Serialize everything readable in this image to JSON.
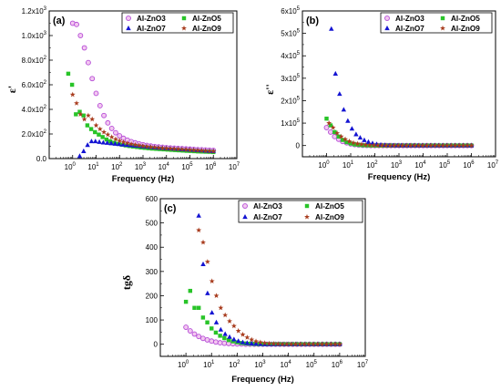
{
  "chart_data": [
    {
      "type": "scatter",
      "panel_label": "(a)",
      "xlabel": "Frequency (Hz)",
      "ylabel": "ε'",
      "xscale": "log",
      "xlim": [
        0.1,
        10000000
      ],
      "ylim": [
        0,
        1200
      ],
      "x_ticks": [
        {
          "label": "10⁰",
          "base": "10",
          "exp": "0",
          "value": 1
        },
        {
          "label": "10¹",
          "base": "10",
          "exp": "1",
          "value": 10
        },
        {
          "label": "10²",
          "base": "10",
          "exp": "2",
          "value": 100
        },
        {
          "label": "10³",
          "base": "10",
          "exp": "3",
          "value": 1000
        },
        {
          "label": "10⁴",
          "base": "10",
          "exp": "4",
          "value": 10000
        },
        {
          "label": "10⁵",
          "base": "10",
          "exp": "5",
          "value": 100000
        },
        {
          "label": "10⁶",
          "base": "10",
          "exp": "6",
          "value": 1000000
        },
        {
          "label": "10⁷",
          "base": "10",
          "exp": "7",
          "value": 10000000
        }
      ],
      "y_ticks": [
        {
          "label": "0.0",
          "mant": "0.0",
          "exp": "",
          "value": 0
        },
        {
          "label": "2.0x10²",
          "mant": "2.0x10",
          "exp": "2",
          "value": 200
        },
        {
          "label": "4.0x10²",
          "mant": "4.0x10",
          "exp": "2",
          "value": 400
        },
        {
          "label": "6.0x10²",
          "mant": "6.0x10",
          "exp": "2",
          "value": 600
        },
        {
          "label": "8.0x10²",
          "mant": "8.0x10",
          "exp": "2",
          "value": 800
        },
        {
          "label": "1.0x10³",
          "mant": "1.0x10",
          "exp": "3",
          "value": 1000
        },
        {
          "label": "1.2x10³",
          "mant": "1.2x10",
          "exp": "3",
          "value": 1200
        }
      ],
      "series": [
        {
          "name": "Al-ZnO3",
          "marker": "circle",
          "color": "#b44ad6",
          "fill": "#f3c8f0",
          "x_start": 1,
          "x_end": 1000000,
          "values": [
            1100,
            1090,
            1000,
            900,
            780,
            650,
            530,
            430,
            350,
            290,
            245,
            210,
            185,
            165,
            150,
            138,
            128,
            120,
            113,
            107,
            102,
            98,
            95,
            92,
            89,
            87,
            85,
            83,
            81,
            79,
            77,
            75,
            73,
            72,
            70,
            68,
            66
          ]
        },
        {
          "name": "Al-ZnO5",
          "marker": "square",
          "color": "#28c428",
          "fill": "#28c428",
          "x_start": 0.65,
          "x_end": 1000000,
          "values": [
            690,
            600,
            360,
            380,
            350,
            270,
            240,
            215,
            195,
            175,
            155,
            140,
            128,
            120,
            113,
            107,
            102,
            98,
            94,
            90,
            87,
            84,
            81,
            79,
            77,
            75,
            73,
            71,
            69,
            67,
            65,
            63,
            62,
            60,
            58,
            57,
            56,
            55,
            53
          ]
        },
        {
          "name": "Al-ZnO7",
          "marker": "triangle",
          "color": "#1414d2",
          "fill": "#1414d2",
          "x_start": 2,
          "x_end": 1000000,
          "values": [
            20,
            60,
            110,
            140,
            140,
            135,
            130,
            127,
            124,
            120,
            117,
            114,
            111,
            108,
            105,
            102,
            99,
            96,
            93,
            90,
            88,
            86,
            84,
            82,
            80,
            78,
            76,
            74,
            72,
            70,
            68,
            66,
            64,
            62,
            60
          ]
        },
        {
          "name": "Al-ZnO9",
          "marker": "star",
          "color": "#a83c1e",
          "fill": "#a83c1e",
          "x_start": 1,
          "x_end": 1000000,
          "values": [
            520,
            450,
            360,
            320,
            350,
            320,
            270,
            240,
            215,
            195,
            175,
            158,
            145,
            134,
            125,
            118,
            112,
            107,
            102,
            98,
            94,
            91,
            88,
            85,
            83,
            81,
            79,
            77,
            75,
            73,
            71,
            69,
            67,
            65,
            63,
            61,
            60
          ]
        }
      ]
    },
    {
      "type": "scatter",
      "panel_label": "(b)",
      "xlabel": "Frequency (Hz)",
      "ylabel": "ε''",
      "xscale": "log",
      "xlim": [
        0.1,
        10000000
      ],
      "ylim": [
        -50000,
        600000
      ],
      "x_ticks": [
        {
          "label": "10⁰",
          "base": "10",
          "exp": "0",
          "value": 1
        },
        {
          "label": "10¹",
          "base": "10",
          "exp": "1",
          "value": 10
        },
        {
          "label": "10²",
          "base": "10",
          "exp": "2",
          "value": 100
        },
        {
          "label": "10³",
          "base": "10",
          "exp": "3",
          "value": 1000
        },
        {
          "label": "10⁴",
          "base": "10",
          "exp": "4",
          "value": 10000
        },
        {
          "label": "10⁵",
          "base": "10",
          "exp": "5",
          "value": 100000
        },
        {
          "label": "10⁶",
          "base": "10",
          "exp": "6",
          "value": 1000000
        },
        {
          "label": "10⁷",
          "base": "10",
          "exp": "7",
          "value": 10000000
        }
      ],
      "y_ticks": [
        {
          "label": "0",
          "mant": "0",
          "exp": "",
          "value": 0
        },
        {
          "label": "1x10⁵",
          "mant": "1x10",
          "exp": "5",
          "value": 100000
        },
        {
          "label": "2x10⁵",
          "mant": "2x10",
          "exp": "5",
          "value": 200000
        },
        {
          "label": "3x10⁵",
          "mant": "3x10",
          "exp": "5",
          "value": 300000
        },
        {
          "label": "4x10⁵",
          "mant": "4x10",
          "exp": "5",
          "value": 400000
        },
        {
          "label": "5x10⁵",
          "mant": "5x10",
          "exp": "5",
          "value": 500000
        },
        {
          "label": "6x10⁵",
          "mant": "6x10",
          "exp": "5",
          "value": 600000
        }
      ],
      "series": [
        {
          "name": "Al-ZnO3",
          "marker": "circle",
          "color": "#b44ad6",
          "fill": "#f3c8f0",
          "x_start": 1,
          "x_end": 1000000,
          "values": [
            80000,
            60000,
            40000,
            28000,
            18000,
            12000,
            7000,
            4000,
            2000,
            1000,
            500,
            200,
            100,
            0,
            0,
            0,
            0,
            0,
            0,
            0,
            0,
            0,
            0,
            0,
            0,
            0,
            0,
            0,
            0,
            0,
            0,
            0,
            0,
            0,
            0,
            0,
            0
          ]
        },
        {
          "name": "Al-ZnO5",
          "marker": "square",
          "color": "#28c428",
          "fill": "#28c428",
          "x_start": 1,
          "x_end": 1000000,
          "values": [
            120000,
            90000,
            60000,
            40000,
            25000,
            15000,
            9000,
            5000,
            3000,
            1500,
            800,
            400,
            200,
            100,
            0,
            0,
            0,
            0,
            0,
            0,
            0,
            0,
            0,
            0,
            0,
            0,
            0,
            0,
            0,
            0,
            0,
            0,
            0,
            0,
            0,
            0,
            0
          ]
        },
        {
          "name": "Al-ZnO7",
          "marker": "triangle",
          "color": "#1414d2",
          "fill": "#1414d2",
          "x_start": 1.58,
          "x_end": 1000000,
          "values": [
            520000,
            320000,
            230000,
            160000,
            110000,
            75000,
            50000,
            35000,
            24000,
            16000,
            10000,
            6000,
            3500,
            2000,
            1000,
            500,
            200,
            100,
            0,
            0,
            0,
            0,
            0,
            0,
            0,
            0,
            0,
            0,
            0,
            0,
            0,
            0,
            0,
            0,
            0
          ]
        },
        {
          "name": "Al-ZnO9",
          "marker": "star",
          "color": "#a83c1e",
          "fill": "#a83c1e",
          "x_start": 1.26,
          "x_end": 1000000,
          "values": [
            100000,
            80000,
            55000,
            40000,
            28000,
            19000,
            12000,
            8000,
            5000,
            3000,
            1800,
            1000,
            500,
            250,
            100,
            0,
            0,
            0,
            0,
            0,
            0,
            0,
            0,
            0,
            0,
            0,
            0,
            0,
            0,
            0,
            0,
            0,
            0,
            0,
            0,
            0
          ]
        }
      ]
    },
    {
      "type": "scatter",
      "panel_label": "(c)",
      "xlabel": "Frequency (Hz)",
      "ylabel": "tgδ",
      "xscale": "log",
      "xlim": [
        0.1,
        10000000
      ],
      "ylim": [
        -50,
        600
      ],
      "x_ticks": [
        {
          "label": "10⁰",
          "base": "10",
          "exp": "0",
          "value": 1
        },
        {
          "label": "10¹",
          "base": "10",
          "exp": "1",
          "value": 10
        },
        {
          "label": "10²",
          "base": "10",
          "exp": "2",
          "value": 100
        },
        {
          "label": "10³",
          "base": "10",
          "exp": "3",
          "value": 1000
        },
        {
          "label": "10⁴",
          "base": "10",
          "exp": "4",
          "value": 10000
        },
        {
          "label": "10⁵",
          "base": "10",
          "exp": "5",
          "value": 100000
        },
        {
          "label": "10⁶",
          "base": "10",
          "exp": "6",
          "value": 1000000
        },
        {
          "label": "10⁷",
          "base": "10",
          "exp": "7",
          "value": 10000000
        }
      ],
      "y_ticks": [
        {
          "label": "0",
          "mant": "0",
          "exp": "",
          "value": 0
        },
        {
          "label": "100",
          "mant": "100",
          "exp": "",
          "value": 100
        },
        {
          "label": "200",
          "mant": "200",
          "exp": "",
          "value": 200
        },
        {
          "label": "300",
          "mant": "300",
          "exp": "",
          "value": 300
        },
        {
          "label": "400",
          "mant": "400",
          "exp": "",
          "value": 400
        },
        {
          "label": "500",
          "mant": "500",
          "exp": "",
          "value": 500
        },
        {
          "label": "600",
          "mant": "600",
          "exp": "",
          "value": 600
        }
      ],
      "series": [
        {
          "name": "Al-ZnO3",
          "marker": "circle",
          "color": "#b44ad6",
          "fill": "#f3c8f0",
          "x_start": 1,
          "x_end": 1000000,
          "values": [
            70,
            55,
            42,
            32,
            24,
            18,
            13,
            9,
            6,
            4,
            3,
            2,
            1,
            1,
            0,
            0,
            0,
            0,
            0,
            0,
            0,
            0,
            0,
            0,
            0,
            0,
            0,
            0,
            0,
            0,
            0,
            0,
            0,
            0,
            0,
            0,
            0
          ]
        },
        {
          "name": "Al-ZnO5",
          "marker": "square",
          "color": "#28c428",
          "fill": "#28c428",
          "x_start": 1,
          "x_end": 1000000,
          "values": [
            175,
            220,
            150,
            150,
            110,
            90,
            65,
            48,
            35,
            25,
            17,
            12,
            8,
            5,
            3,
            2,
            1,
            0,
            0,
            0,
            0,
            0,
            0,
            0,
            0,
            0,
            0,
            0,
            0,
            0,
            0,
            0,
            0,
            0,
            0,
            0,
            0
          ]
        },
        {
          "name": "Al-ZnO7",
          "marker": "triangle",
          "color": "#1414d2",
          "fill": "#1414d2",
          "x_start": 3.16,
          "x_end": 1000000,
          "values": [
            530,
            330,
            210,
            130,
            90,
            60,
            42,
            30,
            20,
            13,
            8,
            5,
            3,
            2,
            1,
            0,
            0,
            0,
            0,
            0,
            0,
            0,
            0,
            0,
            0,
            0,
            0,
            0,
            0,
            0,
            0,
            0,
            0
          ]
        },
        {
          "name": "Al-ZnO9",
          "marker": "star",
          "color": "#a83c1e",
          "fill": "#a83c1e",
          "x_start": 3.16,
          "x_end": 1000000,
          "values": [
            470,
            420,
            340,
            260,
            200,
            150,
            120,
            95,
            75,
            55,
            40,
            28,
            19,
            12,
            8,
            5,
            3,
            2,
            1,
            0,
            0,
            0,
            0,
            0,
            0,
            0,
            0,
            0,
            0,
            0,
            0,
            0,
            0
          ]
        }
      ]
    }
  ]
}
